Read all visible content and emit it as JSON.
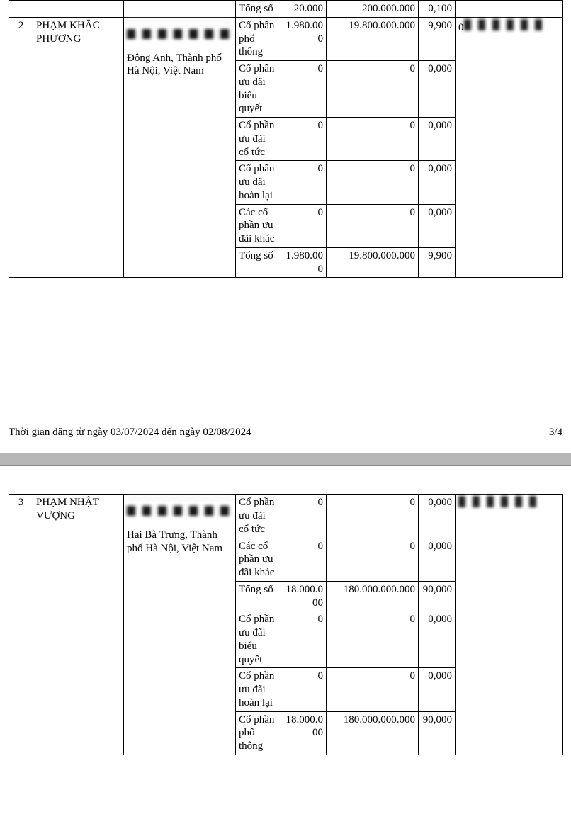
{
  "section1": {
    "prevTotalRow": {
      "label": "Tổng số",
      "qty": "20.000",
      "value": "200.000.000",
      "pct": "0,100"
    },
    "idx": "2",
    "name": "PHẠM KHẮC PHƯƠNG",
    "addr_tail": "Đông Anh, Thành phố Hà Nội, Việt Nam",
    "rows": [
      {
        "label": "Cổ phần phổ thông",
        "qty": "1.980.000",
        "value": "19.800.000.000",
        "pct": "9,900"
      },
      {
        "label": "Cổ phần ưu đãi biểu quyết",
        "qty": "0",
        "value": "0",
        "pct": "0,000"
      },
      {
        "label": "Cổ phần ưu đãi cổ tức",
        "qty": "0",
        "value": "0",
        "pct": "0,000"
      },
      {
        "label": "Cổ phần ưu đãi hoàn lại",
        "qty": "0",
        "value": "0",
        "pct": "0,000"
      },
      {
        "label": "Các cổ phần ưu đãi khác",
        "qty": "0",
        "value": "0",
        "pct": "0,000"
      },
      {
        "label": "Tổng số",
        "qty": "1.980.000",
        "value": "19.800.000.000",
        "pct": "9,900"
      }
    ]
  },
  "footer": {
    "text": "Thời gian đăng từ ngày 03/07/2024 đến ngày 02/08/2024",
    "page": "3/4"
  },
  "section2": {
    "idx": "3",
    "name": "PHẠM NHẬT VƯỢNG",
    "addr_tail": "Hai Bà Trưng, Thành phố Hà Nội, Việt Nam",
    "rows": [
      {
        "label": "Cổ phần ưu đãi cổ tức",
        "qty": "0",
        "value": "0",
        "pct": "0,000"
      },
      {
        "label": "Các cổ phần ưu đãi khác",
        "qty": "0",
        "value": "0",
        "pct": "0,000"
      },
      {
        "label": "Tổng số",
        "qty": "18.000.000",
        "value": "180.000.000.000",
        "pct": "90,000"
      },
      {
        "label": "Cổ phần ưu đãi biểu quyết",
        "qty": "0",
        "value": "0",
        "pct": "0,000"
      },
      {
        "label": "Cổ phần ưu đãi hoàn lại",
        "qty": "0",
        "value": "0",
        "pct": "0,000"
      },
      {
        "label": "Cổ phần phổ thông",
        "qty": "18.000.000",
        "value": "180.000.000.000",
        "pct": "90,000"
      }
    ]
  }
}
